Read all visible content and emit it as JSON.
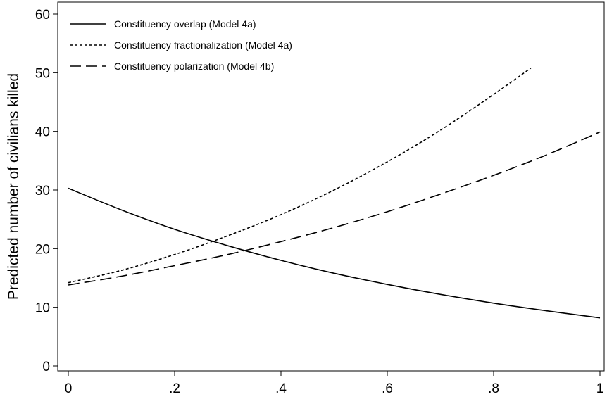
{
  "chart_data": {
    "type": "line",
    "title": "",
    "xlabel": "",
    "ylabel": "Predicted number of civilians killed",
    "xlim": [
      0,
      1
    ],
    "ylim": [
      0,
      60
    ],
    "x_ticks": [
      0,
      0.2,
      0.4,
      0.6,
      0.8,
      1
    ],
    "x_tick_labels": [
      "0",
      ".2",
      ".4",
      ".6",
      ".8",
      "1"
    ],
    "y_ticks": [
      0,
      10,
      20,
      30,
      40,
      50,
      60
    ],
    "y_tick_labels": [
      "0",
      "10",
      "20",
      "30",
      "40",
      "50",
      "60"
    ],
    "grid": false,
    "legend_position": "top-left",
    "series": [
      {
        "name": "Constituency overlap (Model 4a)",
        "style": "solid",
        "color": "#000000",
        "x": [
          0,
          0.1,
          0.2,
          0.3,
          0.4,
          0.5,
          0.6,
          0.7,
          0.8,
          0.9,
          1.0
        ],
        "y": [
          30.3,
          26.6,
          23.3,
          20.5,
          18.0,
          15.8,
          13.9,
          12.2,
          10.7,
          9.4,
          8.2
        ]
      },
      {
        "name": "Constituency fractionalization (Model 4a)",
        "style": "dotted",
        "color": "#000000",
        "x": [
          0,
          0.1,
          0.2,
          0.3,
          0.4,
          0.5,
          0.6,
          0.7,
          0.8,
          0.87
        ],
        "y": [
          14.2,
          16.3,
          19.0,
          22.2,
          25.8,
          30.0,
          34.8,
          40.2,
          46.3,
          50.8
        ]
      },
      {
        "name": "Constituency polarization (Model 4b)",
        "style": "dashed",
        "color": "#000000",
        "x": [
          0,
          0.1,
          0.2,
          0.3,
          0.4,
          0.5,
          0.6,
          0.7,
          0.8,
          0.9,
          1.0
        ],
        "y": [
          13.8,
          15.3,
          17.1,
          19.0,
          21.2,
          23.6,
          26.3,
          29.3,
          32.5,
          36.0,
          39.9
        ]
      }
    ]
  }
}
